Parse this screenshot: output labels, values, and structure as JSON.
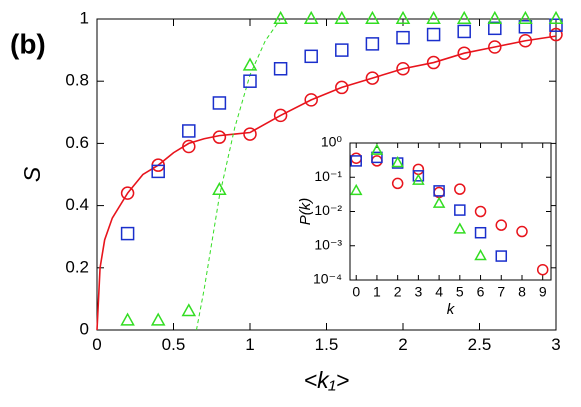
{
  "chart_data": [
    {
      "type": "scatter",
      "panel_label": "(b)",
      "xlabel": "<k₁>",
      "ylabel": "S",
      "xlim": [
        0,
        3
      ],
      "ylim": [
        0,
        1
      ],
      "xticks": [
        0,
        0.5,
        1,
        1.5,
        2,
        2.5,
        3
      ],
      "yticks": [
        0,
        0.2,
        0.4,
        0.6,
        0.8,
        1
      ],
      "series": [
        {
          "color": "#e8141c",
          "line": "solid",
          "x": [
            0,
            0.02,
            0.05,
            0.1,
            0.2,
            0.3,
            0.4,
            0.5,
            0.6,
            0.7,
            0.8,
            0.9,
            1,
            1.2,
            1.4,
            1.6,
            1.8,
            2,
            2.2,
            2.4,
            2.6,
            2.8,
            3
          ],
          "values": [
            0,
            0.2,
            0.29,
            0.36,
            0.44,
            0.5,
            0.53,
            0.57,
            0.6,
            0.615,
            0.625,
            0.63,
            0.635,
            0.69,
            0.74,
            0.78,
            0.81,
            0.84,
            0.86,
            0.89,
            0.91,
            0.93,
            0.945
          ]
        },
        {
          "color": "#33dd22",
          "line": "dashed",
          "x": [
            0.65,
            0.7,
            0.8,
            0.9,
            1.0,
            1.1,
            1.2
          ],
          "values": [
            0,
            0.13,
            0.43,
            0.65,
            0.82,
            0.93,
            1.0
          ]
        },
        {
          "color": "#e8141c",
          "marker": "circle",
          "x": [
            0.2,
            0.4,
            0.6,
            0.8,
            1.0,
            1.2,
            1.4,
            1.6,
            1.8,
            2.0,
            2.2,
            2.4,
            2.6,
            2.8,
            3.0
          ],
          "values": [
            0.44,
            0.53,
            0.59,
            0.62,
            0.63,
            0.69,
            0.74,
            0.78,
            0.81,
            0.84,
            0.86,
            0.89,
            0.91,
            0.93,
            0.95
          ]
        },
        {
          "color": "#1a2fcc",
          "marker": "square",
          "x": [
            0.2,
            0.4,
            0.6,
            0.8,
            1.0,
            1.2,
            1.4,
            1.6,
            1.8,
            2.0,
            2.2,
            2.4,
            2.6,
            2.8,
            3.0
          ],
          "values": [
            0.31,
            0.51,
            0.64,
            0.73,
            0.8,
            0.84,
            0.88,
            0.9,
            0.92,
            0.94,
            0.95,
            0.96,
            0.97,
            0.975,
            0.98
          ]
        },
        {
          "color": "#33dd22",
          "marker": "triangle",
          "x": [
            0.2,
            0.4,
            0.6,
            0.8,
            1.0,
            1.2,
            1.4,
            1.6,
            1.8,
            2.0,
            2.2,
            2.4,
            2.6,
            2.8,
            3.0
          ],
          "values": [
            0.03,
            0.03,
            0.06,
            0.45,
            0.85,
            1.0,
            1.0,
            1.0,
            1.0,
            1.0,
            1.0,
            1.0,
            1.0,
            1.0,
            1.0
          ]
        }
      ]
    },
    {
      "type": "scatter",
      "xlabel": "k",
      "ylabel": "P(k)",
      "yscale": "log",
      "xlim": [
        -0.3,
        9.4
      ],
      "ylim": [
        0.0001,
        1
      ],
      "xticks": [
        0,
        1,
        2,
        3,
        4,
        5,
        6,
        7,
        8,
        9
      ],
      "yticks": [
        {
          "value": 0.0001,
          "label": "10⁻⁴"
        },
        {
          "value": 0.001,
          "label": "10⁻³"
        },
        {
          "value": 0.01,
          "label": "10⁻²"
        },
        {
          "value": 0.1,
          "label": "10⁻¹"
        },
        {
          "value": 1,
          "label": "10⁰"
        }
      ],
      "series": [
        {
          "color": "#e8141c",
          "marker": "circle",
          "x": [
            0,
            1,
            2,
            3,
            4,
            5,
            6,
            7,
            8,
            9
          ],
          "values": [
            0.36,
            0.3,
            0.066,
            0.17,
            0.036,
            0.045,
            0.01,
            0.004,
            0.0026,
            0.0002
          ]
        },
        {
          "color": "#1a2fcc",
          "marker": "square",
          "x": [
            0,
            1,
            2,
            3,
            4,
            5,
            6,
            7
          ],
          "values": [
            0.3,
            0.38,
            0.26,
            0.11,
            0.04,
            0.011,
            0.0024,
            0.0005
          ]
        },
        {
          "color": "#33dd22",
          "marker": "triangle",
          "x": [
            0,
            1,
            2,
            3,
            4,
            5,
            6
          ],
          "values": [
            0.04,
            0.6,
            0.26,
            0.08,
            0.017,
            0.003,
            0.0005
          ]
        }
      ]
    }
  ]
}
